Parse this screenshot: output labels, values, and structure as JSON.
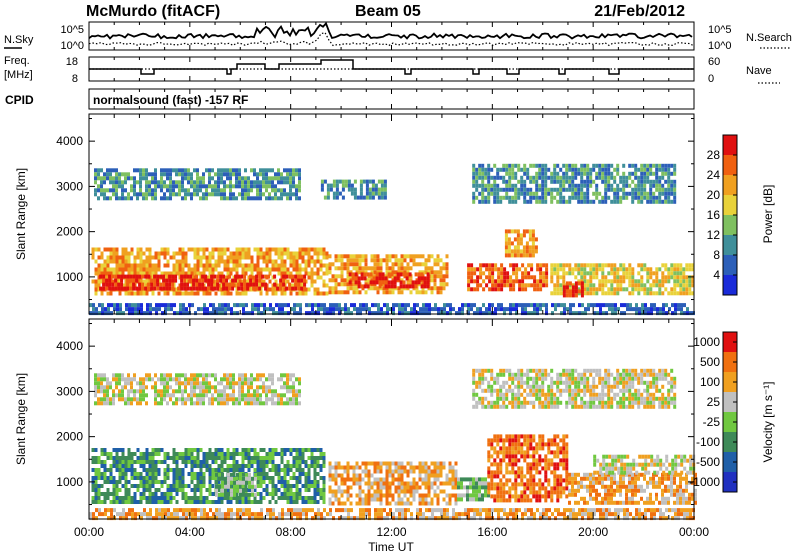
{
  "header": {
    "station": "McMurdo (fitACF)",
    "beam": "Beam 05",
    "date": "21/Feb/2012"
  },
  "strip_panels": {
    "noise": {
      "left_label": "N.Sky",
      "right_label": "N.Search",
      "left_ticks": [
        "10^5",
        "10^0"
      ],
      "right_ticks": [
        "10^5",
        "10^0"
      ]
    },
    "frequency": {
      "left_label": "Freq.",
      "left_unit": "[MHz]",
      "left_ticks": [
        "18",
        "8"
      ],
      "right_label": "Nave",
      "right_ticks": [
        "60",
        "0"
      ]
    },
    "cpid": {
      "label": "CPID",
      "text": "normalsound (fast) -157 RF"
    }
  },
  "chart_data": [
    {
      "type": "heatmap",
      "title": "",
      "xlabel": "Time UT",
      "ylabel": "Slant Range [km]",
      "x_ticks": [
        "00:00",
        "04:00",
        "08:00",
        "12:00",
        "16:00",
        "20:00",
        "00:00"
      ],
      "x_range_hours": [
        0,
        24
      ],
      "y_ticks": [
        1000,
        2000,
        3000,
        4000
      ],
      "ylim": [
        180,
        4600
      ],
      "grid": false,
      "colorbar": {
        "label": "Power [dB]",
        "tick_labels": [
          "4",
          "8",
          "12",
          "16",
          "20",
          "24",
          "28"
        ],
        "bands": [
          "#1a2bd9",
          "#2c5fb8",
          "#3f8f9a",
          "#7fc060",
          "#e9d23a",
          "#f0a020",
          "#f06010",
          "#e01010"
        ]
      },
      "echo_regions": [
        {
          "t0": 0.1,
          "t1": 9.4,
          "r0": 650,
          "r1": 1650,
          "level": 5
        },
        {
          "t0": 0.4,
          "t1": 8.6,
          "r0": 700,
          "r1": 1050,
          "level": 7
        },
        {
          "t0": 9.5,
          "t1": 14.2,
          "r0": 650,
          "r1": 1500,
          "level": 5
        },
        {
          "t0": 10.3,
          "t1": 13.5,
          "r0": 750,
          "r1": 1100,
          "level": 7
        },
        {
          "t0": 15.0,
          "t1": 18.2,
          "r0": 700,
          "r1": 1300,
          "level": 6
        },
        {
          "t0": 16.5,
          "t1": 17.8,
          "r0": 1500,
          "r1": 2050,
          "level": 5
        },
        {
          "t0": 18.3,
          "t1": 24.0,
          "r0": 600,
          "r1": 1300,
          "level": 4
        },
        {
          "t0": 18.8,
          "t1": 19.6,
          "r0": 600,
          "r1": 900,
          "level": 7
        },
        {
          "t0": 0.2,
          "t1": 8.4,
          "r0": 2700,
          "r1": 3400,
          "level": 2
        },
        {
          "t0": 9.2,
          "t1": 11.8,
          "r0": 2750,
          "r1": 3150,
          "level": 2
        },
        {
          "t0": 15.2,
          "t1": 23.2,
          "r0": 2700,
          "r1": 3500,
          "level": 2
        },
        {
          "t0": 0.0,
          "t1": 24.0,
          "r0": 200,
          "r1": 420,
          "level": 1
        }
      ]
    },
    {
      "type": "heatmap",
      "title": "",
      "xlabel": "Time UT",
      "ylabel": "Slant Range [km]",
      "x_ticks": [
        "00:00",
        "04:00",
        "08:00",
        "12:00",
        "16:00",
        "20:00",
        "00:00"
      ],
      "x_range_hours": [
        0,
        24
      ],
      "y_ticks": [
        1000,
        2000,
        3000,
        4000
      ],
      "ylim": [
        180,
        4600
      ],
      "grid": false,
      "colorbar": {
        "label": "Velocity [m s⁻¹]",
        "tick_labels": [
          "1000",
          "500",
          "100",
          "25",
          "-25",
          "-100",
          "-500",
          "-1000"
        ],
        "bands": [
          "#2030c0",
          "#1f5fa8",
          "#3e8a58",
          "#70c840",
          "#c0c0c0",
          "#f0a020",
          "#f07010",
          "#e01010"
        ]
      },
      "echo_regions": [
        {
          "t0": 0.1,
          "t1": 9.3,
          "r0": 600,
          "r1": 1750,
          "level": 2
        },
        {
          "t0": 5.0,
          "t1": 6.6,
          "r0": 700,
          "r1": 1200,
          "level": 3
        },
        {
          "t0": 9.5,
          "t1": 14.6,
          "r0": 550,
          "r1": 1450,
          "level": 5
        },
        {
          "t0": 14.6,
          "t1": 15.8,
          "r0": 650,
          "r1": 1100,
          "level": 3
        },
        {
          "t0": 15.8,
          "t1": 19.0,
          "r0": 600,
          "r1": 2050,
          "level": 6
        },
        {
          "t0": 19.0,
          "t1": 24.0,
          "r0": 500,
          "r1": 1200,
          "level": 5
        },
        {
          "t0": 20.0,
          "t1": 24.0,
          "r0": 1200,
          "r1": 1600,
          "level": 4
        },
        {
          "t0": 0.2,
          "t1": 8.4,
          "r0": 2700,
          "r1": 3400,
          "level": 4
        },
        {
          "t0": 15.2,
          "t1": 23.2,
          "r0": 2700,
          "r1": 3500,
          "level": 4
        },
        {
          "t0": 0.0,
          "t1": 24.0,
          "r0": 200,
          "r1": 420,
          "level": 5
        }
      ]
    }
  ]
}
